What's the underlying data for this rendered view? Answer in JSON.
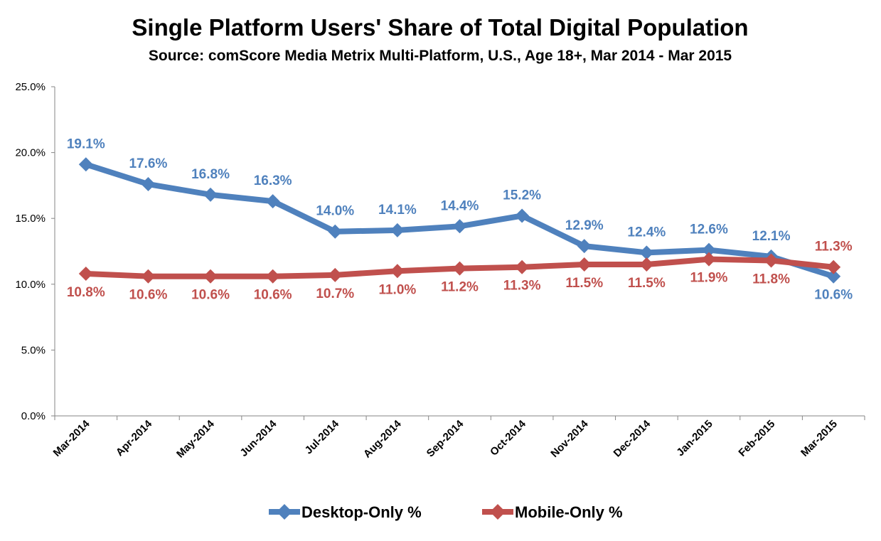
{
  "chart_data": {
    "type": "line",
    "title": "Single Platform Users' Share of Total Digital Population",
    "subtitle": "Source: comScore Media Metrix Multi-Platform, U.S., Age 18+, Mar 2014 - Mar 2015",
    "xlabel": "",
    "ylabel": "",
    "ylim": [
      0,
      25
    ],
    "yticks": [
      "0.0%",
      "5.0%",
      "10.0%",
      "15.0%",
      "20.0%",
      "25.0%"
    ],
    "grid": false,
    "legend_position": "bottom",
    "categories": [
      "Mar-2014",
      "Apr-2014",
      "May-2014",
      "Jun-2014",
      "Jul-2014",
      "Aug-2014",
      "Sep-2014",
      "Oct-2014",
      "Nov-2014",
      "Dec-2014",
      "Jan-2015",
      "Feb-2015",
      "Mar-2015"
    ],
    "series": [
      {
        "name": "Desktop-Only %",
        "color": "#4F81BD",
        "values": [
          19.1,
          17.6,
          16.8,
          16.3,
          14.0,
          14.1,
          14.4,
          15.2,
          12.9,
          12.4,
          12.6,
          12.1,
          10.6
        ],
        "labels": [
          "19.1%",
          "17.6%",
          "16.8%",
          "16.3%",
          "14.0%",
          "14.1%",
          "14.4%",
          "15.2%",
          "12.9%",
          "12.4%",
          "12.6%",
          "12.1%",
          "10.6%"
        ],
        "label_side": [
          "above",
          "above",
          "above",
          "above",
          "above",
          "above",
          "above",
          "above",
          "above",
          "above",
          "above",
          "above",
          "below"
        ]
      },
      {
        "name": "Mobile-Only %",
        "color": "#C0504D",
        "values": [
          10.8,
          10.6,
          10.6,
          10.6,
          10.7,
          11.0,
          11.2,
          11.3,
          11.5,
          11.5,
          11.9,
          11.8,
          11.3
        ],
        "labels": [
          "10.8%",
          "10.6%",
          "10.6%",
          "10.6%",
          "10.7%",
          "11.0%",
          "11.2%",
          "11.3%",
          "11.5%",
          "11.5%",
          "11.9%",
          "11.8%",
          "11.3%"
        ],
        "label_side": [
          "below",
          "below",
          "below",
          "below",
          "below",
          "below",
          "below",
          "below",
          "below",
          "below",
          "below",
          "below",
          "above"
        ]
      }
    ]
  }
}
